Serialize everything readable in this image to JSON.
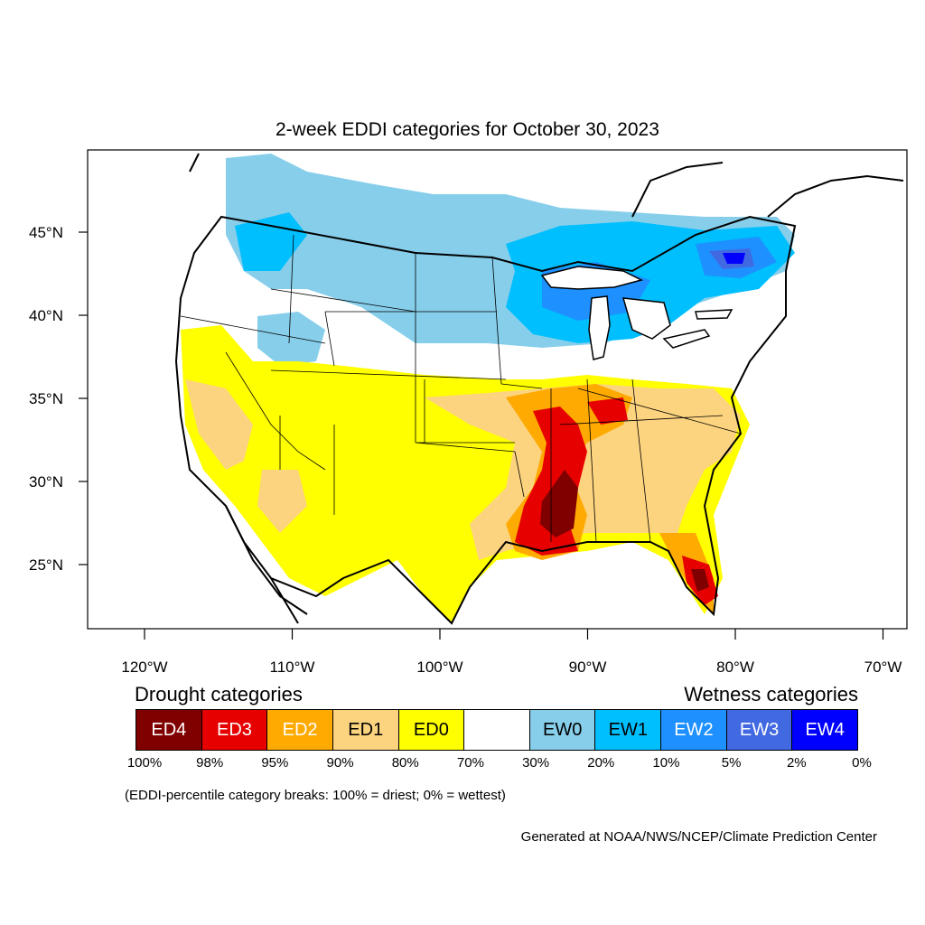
{
  "title": "2-week EDDI categories for October 30, 2023",
  "map": {
    "lat_labels": [
      "45°N",
      "40°N",
      "35°N",
      "30°N",
      "25°N"
    ],
    "lat_values": [
      45,
      40,
      35,
      30,
      25
    ],
    "lon_labels": [
      "120°W",
      "110°W",
      "100°W",
      "90°W",
      "80°W",
      "70°W"
    ],
    "lon_values": [
      -120,
      -110,
      -100,
      -90,
      -80,
      -70
    ]
  },
  "legend": {
    "drought_heading": "Drought categories",
    "wetness_heading": "Wetness categories",
    "categories": [
      {
        "label": "ED4",
        "color": "#800000",
        "text_color": "#ffffff"
      },
      {
        "label": "ED3",
        "color": "#e60000",
        "text_color": "#ffffff"
      },
      {
        "label": "ED2",
        "color": "#ffaa00",
        "text_color": "#ffffff"
      },
      {
        "label": "ED1",
        "color": "#fcd37f",
        "text_color": "#000000"
      },
      {
        "label": "ED0",
        "color": "#ffff00",
        "text_color": "#000000"
      },
      {
        "label": "",
        "color": "#ffffff",
        "text_color": "#000000"
      },
      {
        "label": "EW0",
        "color": "#87ceeb",
        "text_color": "#000000"
      },
      {
        "label": "EW1",
        "color": "#00bfff",
        "text_color": "#000000"
      },
      {
        "label": "EW2",
        "color": "#1e90ff",
        "text_color": "#ffffff"
      },
      {
        "label": "EW3",
        "color": "#4169e1",
        "text_color": "#ffffff"
      },
      {
        "label": "EW4",
        "color": "#0000ff",
        "text_color": "#ffffff"
      }
    ],
    "breaks": [
      "100%",
      "98%",
      "95%",
      "90%",
      "80%",
      "70%",
      "30%",
      "20%",
      "10%",
      "5%",
      "2%",
      "0%"
    ]
  },
  "note": "(EDDI-percentile category breaks: 100% = driest; 0% = wettest)",
  "credit": "Generated at NOAA/NWS/NCEP/Climate Prediction Center"
}
